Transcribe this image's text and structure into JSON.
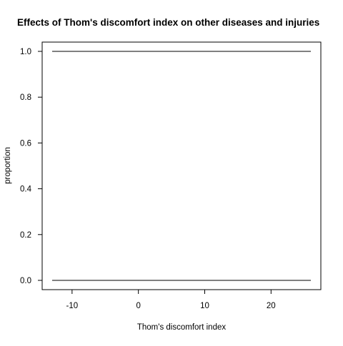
{
  "chart_data": {
    "type": "line",
    "title": "Effects of Thom's discomfort index on other diseases and injuries",
    "xlabel": "Thom's discomfort index",
    "ylabel": "proportion",
    "xlim": [
      -13.0,
      26.0
    ],
    "ylim": [
      0.0,
      1.0
    ],
    "x_ticks": [
      -10,
      0,
      10,
      20
    ],
    "y_ticks": [
      0.0,
      0.2,
      0.4,
      0.6,
      0.8,
      1.0
    ],
    "x_tick_labels": [
      "-10",
      "0",
      "10",
      "20"
    ],
    "y_tick_labels": [
      "0.0",
      "0.2",
      "0.4",
      "0.6",
      "0.8",
      "1.0"
    ],
    "grid": false,
    "legend": "none",
    "series": [
      {
        "x": [
          -13.0,
          26.0
        ],
        "y": [
          1.0,
          1.0
        ],
        "color": "#000000"
      },
      {
        "x": [
          -13.0,
          26.0
        ],
        "y": [
          0.0,
          0.0
        ],
        "color": "#000000"
      }
    ]
  }
}
